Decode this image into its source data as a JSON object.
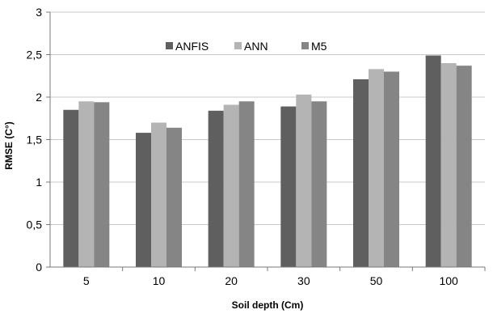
{
  "chart_data": {
    "type": "bar",
    "title": "",
    "xlabel": "Soil depth (Cm)",
    "ylabel": "RMSE (C°)",
    "categories": [
      "5",
      "10",
      "20",
      "30",
      "50",
      "100"
    ],
    "ylim": [
      0,
      3
    ],
    "yticks": [
      0,
      0.5,
      1,
      1.5,
      2,
      2.5,
      3
    ],
    "ytick_labels": [
      "0",
      "0,5",
      "1",
      "1,5",
      "2",
      "2,5",
      "3"
    ],
    "grid": true,
    "legend_position": "top",
    "series": [
      {
        "name": "ANFIS",
        "color": "#5f5f5f",
        "values": [
          1.85,
          1.58,
          1.84,
          1.89,
          2.21,
          2.49
        ]
      },
      {
        "name": "ANN",
        "color": "#b4b4b4",
        "values": [
          1.95,
          1.7,
          1.91,
          2.03,
          2.33,
          2.4
        ]
      },
      {
        "name": "M5",
        "color": "#858585",
        "values": [
          1.94,
          1.64,
          1.95,
          1.95,
          2.3,
          2.37
        ]
      }
    ]
  }
}
